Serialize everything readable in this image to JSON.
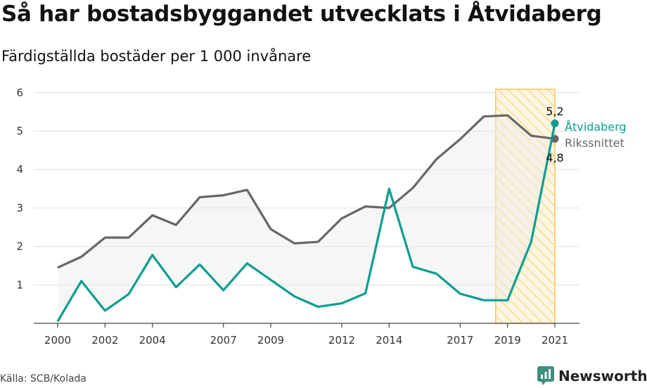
{
  "title": "Så har bostadsbyggandet utvecklats i Åtvidaberg",
  "subtitle": "Färdigställda bostäder per 1 000 invånare",
  "source": "Källa: SCB/Kolada",
  "brand": "Newsworthy",
  "colors": {
    "kommun": "#0b9e8f",
    "riket": "#666666",
    "highlight": "#f7c654",
    "fill": "#ececec"
  },
  "chart_data": {
    "type": "line",
    "x": [
      2000,
      2001,
      2002,
      2003,
      2004,
      2005,
      2006,
      2007,
      2008,
      2009,
      2010,
      2011,
      2012,
      2013,
      2014,
      2015,
      2016,
      2017,
      2018,
      2019,
      2020,
      2021
    ],
    "x_tick_labels": [
      "2000",
      "2002",
      "2004",
      "2007",
      "2009",
      "2012",
      "2014",
      "2017",
      "2019",
      "2021"
    ],
    "y_tick_labels": [
      "1",
      "2",
      "3",
      "4",
      "5",
      "6"
    ],
    "ylim": [
      0,
      6
    ],
    "grid": true,
    "highlight_range": [
      2018.5,
      2021
    ],
    "series": [
      {
        "name": "Rikssnittet",
        "values": [
          1.45,
          1.73,
          2.23,
          2.23,
          2.81,
          2.56,
          3.28,
          3.33,
          3.47,
          2.45,
          2.08,
          2.12,
          2.73,
          3.04,
          3.0,
          3.52,
          4.27,
          4.79,
          5.38,
          5.41,
          4.88,
          4.8
        ]
      },
      {
        "name": "Åtvidaberg",
        "values": [
          0.05,
          1.1,
          0.33,
          0.76,
          1.78,
          0.94,
          1.53,
          0.86,
          1.56,
          1.13,
          0.7,
          0.43,
          0.52,
          0.78,
          3.5,
          1.47,
          1.29,
          0.77,
          0.6,
          0.6,
          2.12,
          5.2
        ]
      }
    ],
    "end_labels": {
      "kommun": "5,2",
      "riket": "4,8"
    }
  }
}
